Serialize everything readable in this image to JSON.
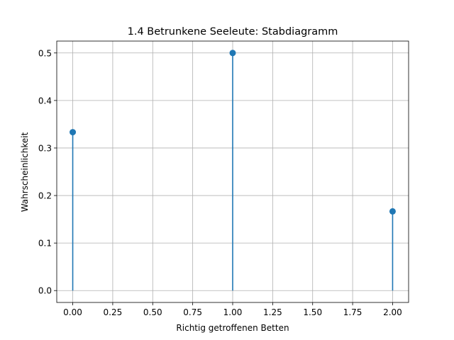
{
  "chart_data": {
    "type": "stem",
    "title": "1.4 Betrunkene Seeleute: Stabdiagramm",
    "xlabel": "Richtig getroffenen Betten",
    "ylabel": "Wahrscheinlichkeit",
    "x": [
      0,
      1,
      2
    ],
    "values": [
      0.3333,
      0.5,
      0.1667
    ],
    "xlim": [
      -0.1,
      2.1
    ],
    "ylim": [
      -0.025,
      0.525
    ],
    "xticks": [
      0.0,
      0.25,
      0.5,
      0.75,
      1.0,
      1.25,
      1.5,
      1.75,
      2.0
    ],
    "xtick_labels": [
      "0.00",
      "0.25",
      "0.50",
      "0.75",
      "1.00",
      "1.25",
      "1.50",
      "1.75",
      "2.00"
    ],
    "yticks": [
      0.0,
      0.1,
      0.2,
      0.3,
      0.4,
      0.5
    ],
    "ytick_labels": [
      "0.0",
      "0.1",
      "0.2",
      "0.3",
      "0.4",
      "0.5"
    ],
    "grid": true,
    "color": "#1f77b4"
  }
}
